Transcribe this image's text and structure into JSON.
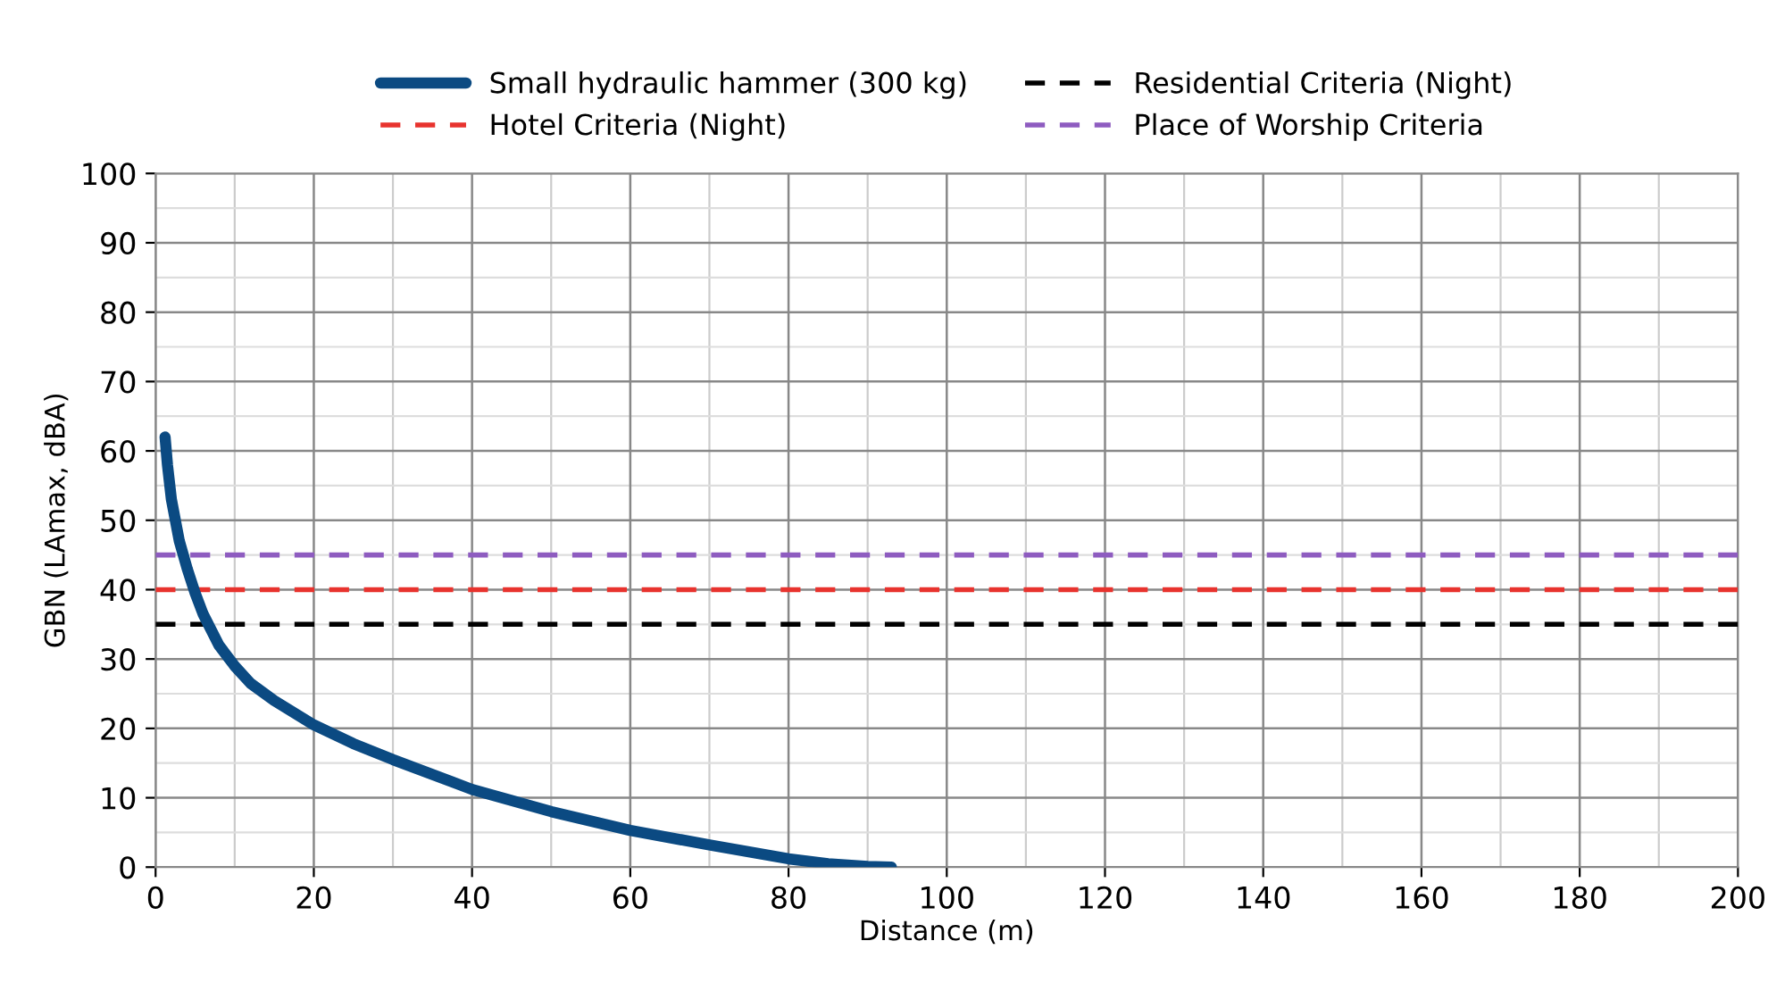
{
  "chart_data": {
    "type": "line",
    "xlabel": "Distance (m)",
    "ylabel": "GBN (LAmax, dBA)",
    "x": [
      1.2,
      1.5,
      2,
      3,
      4,
      5,
      6,
      8,
      10,
      12,
      15,
      20,
      25,
      30,
      40,
      50,
      60,
      70,
      80,
      85,
      90,
      93
    ],
    "series": [
      {
        "name": "Small hydraulic hammer (300 kg)",
        "color": "#0b4a82",
        "values": [
          62,
          58,
          53,
          47,
          43,
          39.5,
          36.5,
          32,
          29,
          26.5,
          24,
          20.5,
          17.8,
          15.5,
          11.2,
          8,
          5.3,
          3.2,
          1.2,
          0.5,
          0.1,
          0
        ]
      }
    ],
    "ref_lines": [
      {
        "axis": "y",
        "value": 35,
        "label": "Residential Criteria (Night)",
        "color": "#000000",
        "line_style": "dashed"
      },
      {
        "axis": "y",
        "value": 40,
        "label": "Hotel Criteria (Night)",
        "color": "#e8332e",
        "line_style": "dashed"
      },
      {
        "axis": "y",
        "value": 45,
        "label": "Place of Worship Criteria",
        "color": "#8e5cc0",
        "line_style": "dashed"
      }
    ],
    "xlim": [
      0,
      200
    ],
    "xticks": [
      0,
      20,
      40,
      60,
      80,
      100,
      120,
      140,
      160,
      180,
      200
    ],
    "ylim": [
      0,
      100
    ],
    "yticks": [
      0,
      10,
      20,
      30,
      40,
      50,
      60,
      70,
      80,
      90,
      100
    ],
    "grid": true,
    "legend": "top",
    "marker": "none",
    "line_style": "solid"
  }
}
